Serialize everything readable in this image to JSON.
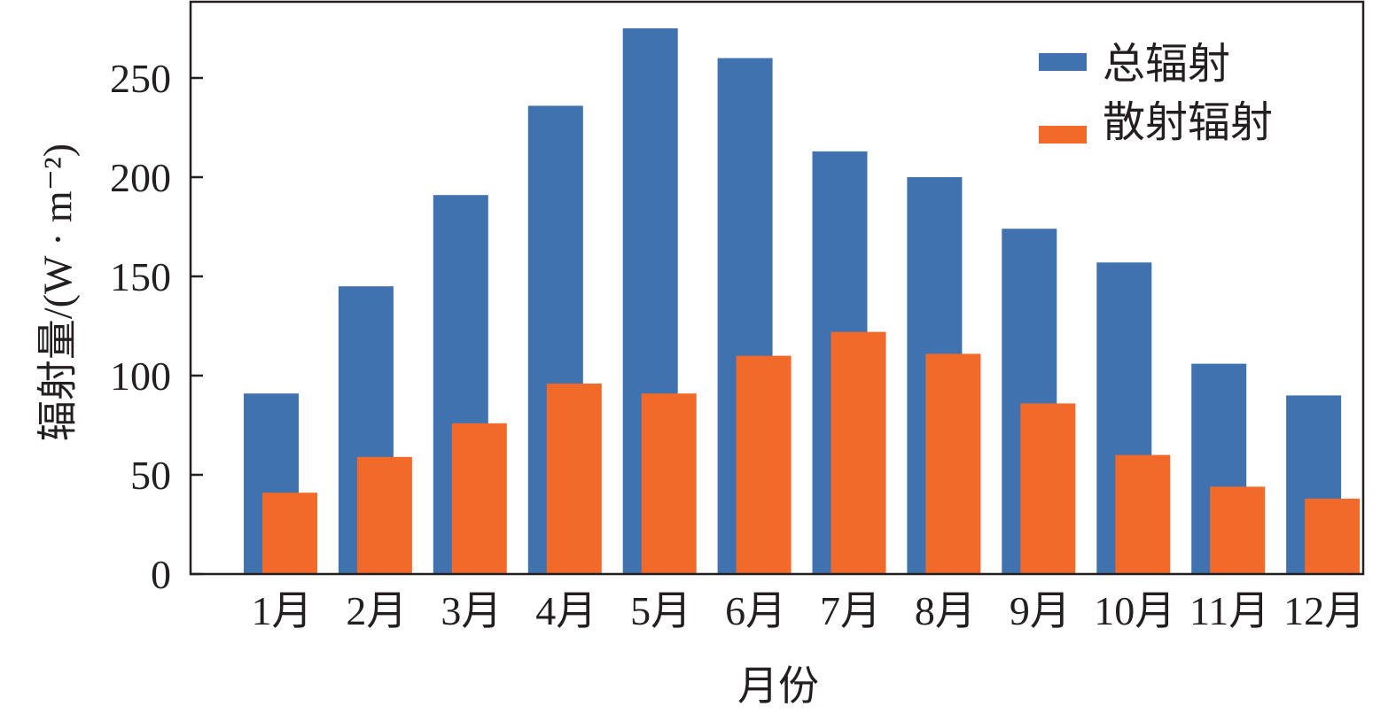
{
  "chart_data": {
    "type": "bar",
    "title": "",
    "xlabel": "月份",
    "ylabel": "辐射量/(W · m⁻²)",
    "categories": [
      "1月",
      "2月",
      "3月",
      "4月",
      "5月",
      "6月",
      "7月",
      "8月",
      "9月",
      "10月",
      "11月",
      "12月"
    ],
    "series": [
      {
        "name": "总辐射",
        "color": "#3f72af",
        "values": [
          91,
          145,
          191,
          236,
          275,
          260,
          213,
          200,
          174,
          157,
          106,
          90
        ]
      },
      {
        "name": "散射辐射",
        "color": "#f26a2a",
        "values": [
          41,
          59,
          76,
          96,
          91,
          110,
          122,
          111,
          86,
          60,
          44,
          38
        ]
      }
    ],
    "ylim": [
      0,
      280
    ],
    "yticks": [
      0,
      50,
      100,
      150,
      200,
      250
    ],
    "grid": false,
    "legend_position": "top-right"
  }
}
